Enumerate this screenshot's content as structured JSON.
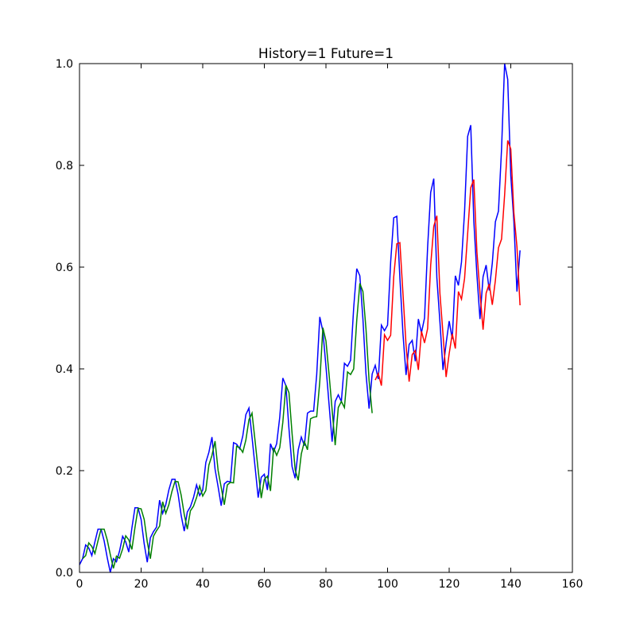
{
  "chart_data": {
    "type": "line",
    "title": "History=1 Future=1",
    "xlabel": "",
    "ylabel": "",
    "xlim": [
      0,
      160
    ],
    "ylim": [
      0.0,
      1.0
    ],
    "xticks": [
      "0",
      "20",
      "40",
      "60",
      "80",
      "100",
      "120",
      "140",
      "160"
    ],
    "yticks": [
      "0.0",
      "0.2",
      "0.4",
      "0.6",
      "0.8",
      "1.0"
    ],
    "grid": false,
    "series": [
      {
        "color": "#0000ff",
        "x_start": 0,
        "values": [
          0.015,
          0.027,
          0.054,
          0.048,
          0.033,
          0.06,
          0.085,
          0.085,
          0.062,
          0.029,
          0.0,
          0.027,
          0.021,
          0.042,
          0.071,
          0.06,
          0.04,
          0.087,
          0.127,
          0.127,
          0.104,
          0.056,
          0.02,
          0.068,
          0.08,
          0.089,
          0.142,
          0.116,
          0.133,
          0.162,
          0.183,
          0.183,
          0.154,
          0.112,
          0.081,
          0.119,
          0.129,
          0.147,
          0.172,
          0.151,
          0.162,
          0.216,
          0.236,
          0.266,
          0.203,
          0.168,
          0.131,
          0.174,
          0.179,
          0.178,
          0.255,
          0.252,
          0.243,
          0.268,
          0.31,
          0.323,
          0.266,
          0.207,
          0.147,
          0.187,
          0.193,
          0.162,
          0.253,
          0.237,
          0.253,
          0.305,
          0.382,
          0.367,
          0.282,
          0.208,
          0.185,
          0.241,
          0.266,
          0.249,
          0.313,
          0.317,
          0.317,
          0.389,
          0.502,
          0.474,
          0.405,
          0.331,
          0.257,
          0.336,
          0.349,
          0.336,
          0.411,
          0.405,
          0.417,
          0.52,
          0.597,
          0.583,
          0.498,
          0.39,
          0.322,
          0.39,
          0.407,
          0.38,
          0.486,
          0.475,
          0.486,
          0.61,
          0.697,
          0.7,
          0.579,
          0.469,
          0.388,
          0.448,
          0.456,
          0.415,
          0.498,
          0.471,
          0.5,
          0.639,
          0.747,
          0.774,
          0.579,
          0.492,
          0.398,
          0.45,
          0.494,
          0.459,
          0.583,
          0.564,
          0.61,
          0.71,
          0.857,
          0.879,
          0.69,
          0.585,
          0.498,
          0.581,
          0.604,
          0.554,
          0.608,
          0.689,
          0.71,
          0.832,
          1.0,
          0.969,
          0.78,
          0.69,
          0.552,
          0.633
        ]
      },
      {
        "color": "#008000",
        "x_start": 1,
        "values": [
          0.027,
          0.033,
          0.058,
          0.051,
          0.037,
          0.062,
          0.085,
          0.085,
          0.064,
          0.035,
          0.008,
          0.032,
          0.028,
          0.046,
          0.072,
          0.064,
          0.045,
          0.088,
          0.126,
          0.125,
          0.104,
          0.06,
          0.027,
          0.071,
          0.082,
          0.091,
          0.139,
          0.116,
          0.133,
          0.159,
          0.179,
          0.178,
          0.152,
          0.114,
          0.085,
          0.121,
          0.13,
          0.147,
          0.17,
          0.15,
          0.161,
          0.211,
          0.23,
          0.258,
          0.2,
          0.167,
          0.133,
          0.172,
          0.177,
          0.176,
          0.248,
          0.245,
          0.236,
          0.26,
          0.3,
          0.313,
          0.258,
          0.201,
          0.146,
          0.183,
          0.189,
          0.16,
          0.245,
          0.23,
          0.245,
          0.295,
          0.368,
          0.353,
          0.273,
          0.202,
          0.181,
          0.233,
          0.257,
          0.241,
          0.302,
          0.305,
          0.306,
          0.375,
          0.481,
          0.455,
          0.39,
          0.32,
          0.25,
          0.324,
          0.336,
          0.324,
          0.394,
          0.389,
          0.4,
          0.496,
          0.568,
          0.552,
          0.478,
          0.377,
          0.313
        ]
      },
      {
        "color": "#ff0000",
        "x_start": 96,
        "values": [
          0.378,
          0.391,
          0.367,
          0.467,
          0.456,
          0.466,
          0.581,
          0.646,
          0.648,
          0.548,
          0.447,
          0.375,
          0.428,
          0.436,
          0.398,
          0.474,
          0.451,
          0.479,
          0.604,
          0.68,
          0.701,
          0.548,
          0.468,
          0.384,
          0.43,
          0.469,
          0.44,
          0.552,
          0.537,
          0.578,
          0.666,
          0.756,
          0.772,
          0.63,
          0.55,
          0.477,
          0.549,
          0.567,
          0.526,
          0.574,
          0.638,
          0.655,
          0.742,
          0.849,
          0.832,
          0.707,
          0.64,
          0.525
        ]
      }
    ]
  }
}
